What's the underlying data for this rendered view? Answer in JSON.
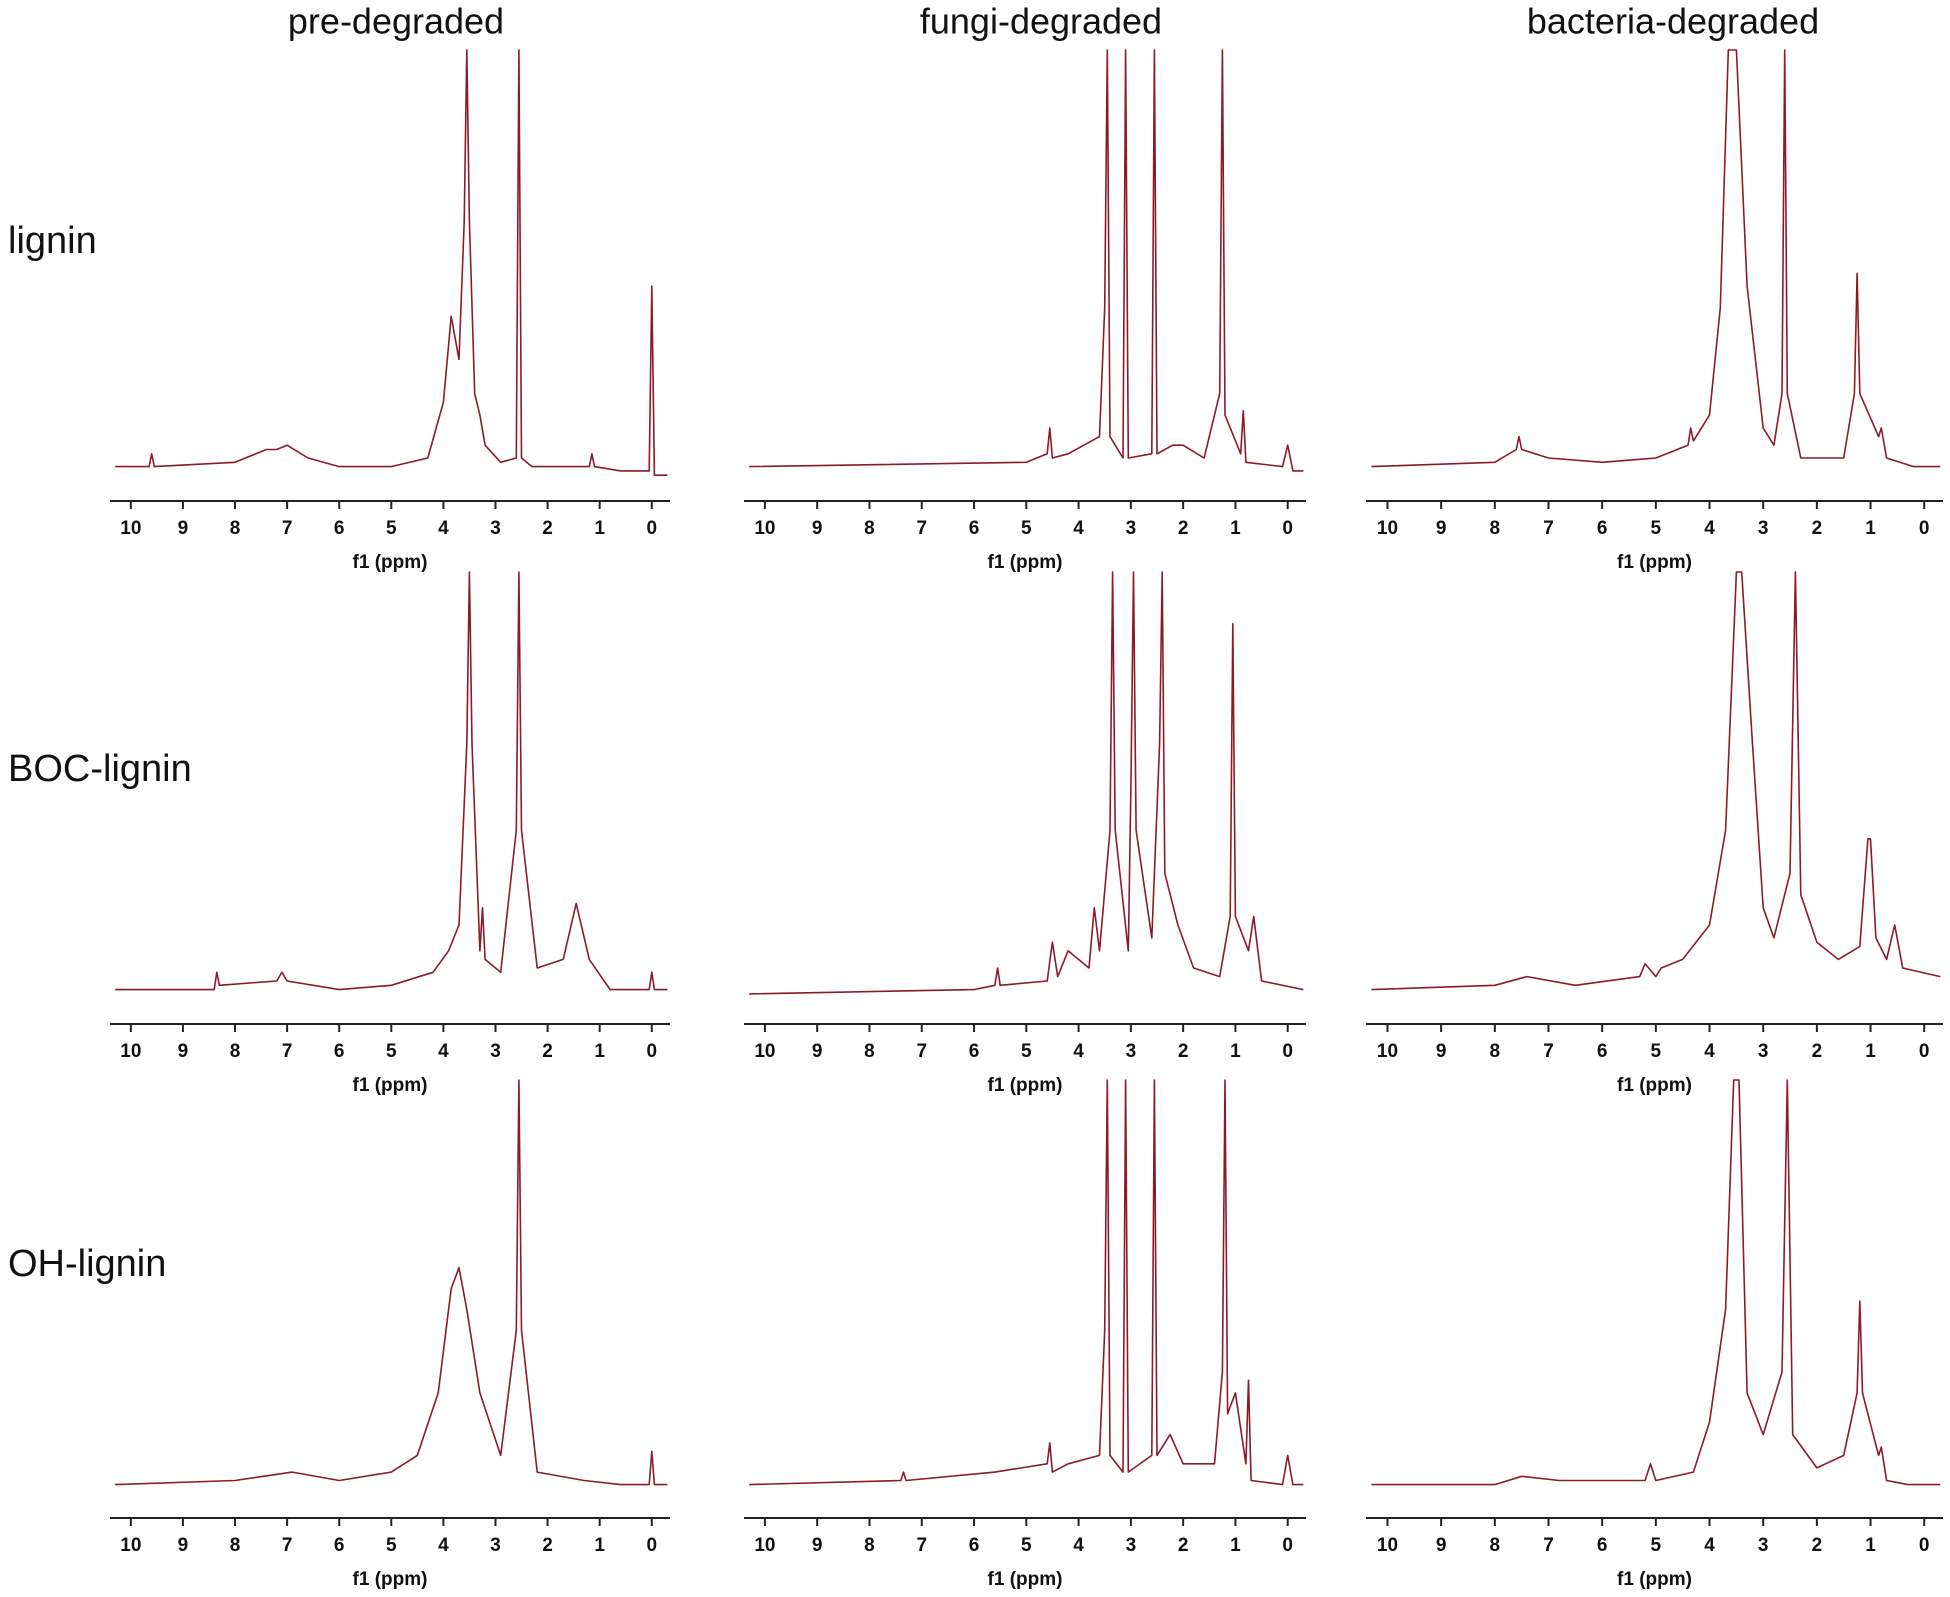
{
  "column_titles": [
    "pre-degraded",
    "fungi-degraded",
    "bacteria-degraded"
  ],
  "row_labels": [
    "lignin",
    "BOC-lignin",
    "OH-lignin"
  ],
  "chart_data": [
    {
      "type": "line",
      "xlabel": "f1 (ppm)",
      "xlim": [
        10.4,
        -0.35
      ],
      "xticks": [
        10,
        9,
        8,
        7,
        6,
        5,
        4,
        3,
        2,
        1,
        0
      ],
      "ylim": [
        -5,
        100
      ],
      "color": "#8b1a2b",
      "x": [
        10.3,
        9.65,
        9.6,
        9.55,
        8.0,
        7.4,
        7.2,
        7.0,
        6.6,
        6.0,
        5.0,
        4.3,
        4.0,
        3.85,
        3.7,
        3.6,
        3.55,
        3.5,
        3.4,
        3.3,
        3.2,
        2.9,
        2.6,
        2.55,
        2.5,
        2.3,
        1.7,
        1.2,
        1.15,
        1.1,
        0.6,
        0.05,
        0.0,
        -0.05,
        -0.3
      ],
      "values": [
        3,
        3,
        6,
        3,
        4,
        7,
        7,
        8,
        5,
        3,
        3,
        5,
        18,
        38,
        28,
        60,
        100,
        60,
        20,
        15,
        8,
        4,
        5,
        100,
        5,
        3,
        3,
        3,
        6,
        3,
        2,
        2,
        45,
        1,
        1
      ]
    },
    {
      "type": "line",
      "xlabel": "f1 (ppm)",
      "xlim": [
        10.4,
        -0.35
      ],
      "xticks": [
        10,
        9,
        8,
        7,
        6,
        5,
        4,
        3,
        2,
        1,
        0
      ],
      "ylim": [
        -5,
        100
      ],
      "color": "#8b1a2b",
      "x": [
        10.3,
        5,
        4.6,
        4.55,
        4.5,
        4.2,
        3.6,
        3.5,
        3.45,
        3.4,
        3.15,
        3.1,
        3.05,
        2.6,
        2.55,
        2.5,
        2.2,
        2.0,
        1.6,
        1.3,
        1.25,
        1.2,
        0.9,
        0.85,
        0.8,
        0.1,
        0.0,
        -0.1,
        -0.3
      ],
      "values": [
        3,
        4,
        6,
        12,
        5,
        6,
        10,
        40,
        100,
        10,
        5,
        100,
        5,
        6,
        100,
        6,
        8,
        8,
        5,
        20,
        100,
        15,
        6,
        16,
        4,
        3,
        8,
        2,
        2
      ]
    },
    {
      "type": "line",
      "xlabel": "f1 (ppm)",
      "xlim": [
        10.4,
        -0.35
      ],
      "xticks": [
        10,
        9,
        8,
        7,
        6,
        5,
        4,
        3,
        2,
        1,
        0
      ],
      "ylim": [
        -5,
        100
      ],
      "color": "#8b1a2b",
      "x": [
        10.3,
        8,
        7.6,
        7.55,
        7.5,
        7.0,
        6,
        5,
        4.4,
        4.35,
        4.3,
        4.0,
        3.8,
        3.65,
        3.5,
        3.3,
        3.0,
        2.8,
        2.65,
        2.6,
        2.55,
        2.3,
        1.5,
        1.3,
        1.25,
        1.2,
        0.85,
        0.8,
        0.7,
        0.2,
        -0.3
      ],
      "values": [
        3,
        4,
        7,
        10,
        7,
        5,
        4,
        5,
        8,
        12,
        9,
        15,
        40,
        100,
        100,
        45,
        12,
        8,
        20,
        100,
        20,
        5,
        5,
        20,
        48,
        20,
        10,
        12,
        5,
        3,
        3
      ]
    },
    {
      "type": "line",
      "xlabel": "f1 (ppm)",
      "xlim": [
        10.4,
        -0.35
      ],
      "xticks": [
        10,
        9,
        8,
        7,
        6,
        5,
        4,
        3,
        2,
        1,
        0
      ],
      "ylim": [
        -5,
        100
      ],
      "color": "#8b1a2b",
      "x": [
        10.3,
        8.4,
        8.35,
        8.3,
        7.2,
        7.1,
        7.0,
        6,
        5,
        4.2,
        3.9,
        3.7,
        3.55,
        3.5,
        3.45,
        3.3,
        3.25,
        3.2,
        2.9,
        2.6,
        2.55,
        2.5,
        2.2,
        1.7,
        1.45,
        1.2,
        0.8,
        0.05,
        0,
        -0.05,
        -0.3
      ],
      "values": [
        3,
        3,
        7,
        4,
        5,
        7,
        5,
        3,
        4,
        7,
        12,
        18,
        60,
        100,
        60,
        12,
        22,
        10,
        7,
        40,
        100,
        40,
        8,
        10,
        23,
        10,
        3,
        3,
        7,
        3,
        3
      ]
    },
    {
      "type": "line",
      "xlabel": "f1 (ppm)",
      "xlim": [
        10.4,
        -0.35
      ],
      "xticks": [
        10,
        9,
        8,
        7,
        6,
        5,
        4,
        3,
        2,
        1,
        0
      ],
      "ylim": [
        -5,
        100
      ],
      "color": "#8b1a2b",
      "x": [
        10.3,
        6,
        5.6,
        5.55,
        5.5,
        4.6,
        4.5,
        4.4,
        4.2,
        3.8,
        3.7,
        3.6,
        3.4,
        3.35,
        3.3,
        3.05,
        3.0,
        2.95,
        2.9,
        2.6,
        2.45,
        2.4,
        2.35,
        2.1,
        1.8,
        1.3,
        1.1,
        1.05,
        1.0,
        0.75,
        0.65,
        0.5,
        -0.3
      ],
      "values": [
        2,
        3,
        4,
        8,
        4,
        5,
        14,
        6,
        12,
        8,
        22,
        12,
        40,
        100,
        40,
        12,
        50,
        100,
        40,
        15,
        60,
        100,
        30,
        18,
        8,
        6,
        20,
        88,
        20,
        12,
        20,
        5,
        3
      ]
    },
    {
      "type": "line",
      "xlabel": "f1 (ppm)",
      "xlim": [
        10.4,
        -0.35
      ],
      "xticks": [
        10,
        9,
        8,
        7,
        6,
        5,
        4,
        3,
        2,
        1,
        0
      ],
      "ylim": [
        -5,
        100
      ],
      "color": "#8b1a2b",
      "x": [
        10.3,
        8,
        7.4,
        6.5,
        5.3,
        5.2,
        5.0,
        4.9,
        4.5,
        4.0,
        3.7,
        3.5,
        3.4,
        3.2,
        3.0,
        2.8,
        2.5,
        2.4,
        2.3,
        2.0,
        1.6,
        1.2,
        1.05,
        1.0,
        0.9,
        0.7,
        0.55,
        0.4,
        -0.3
      ],
      "values": [
        3,
        4,
        6,
        4,
        6,
        9,
        6,
        8,
        10,
        18,
        40,
        100,
        100,
        60,
        22,
        15,
        30,
        100,
        25,
        14,
        10,
        13,
        38,
        38,
        15,
        10,
        18,
        8,
        6
      ]
    },
    {
      "type": "line",
      "xlabel": "f1 (ppm)",
      "xlim": [
        10.4,
        -0.35
      ],
      "xticks": [
        10,
        9,
        8,
        7,
        6,
        5,
        4,
        3,
        2,
        1,
        0
      ],
      "ylim": [
        -5,
        100
      ],
      "color": "#8b1a2b",
      "x": [
        10.3,
        8,
        6.9,
        6,
        5,
        4.5,
        4.1,
        3.85,
        3.7,
        3.55,
        3.3,
        2.9,
        2.6,
        2.55,
        2.5,
        2.2,
        1.3,
        0.6,
        0.05,
        0,
        -0.05,
        -0.3
      ],
      "values": [
        3,
        4,
        6,
        4,
        6,
        10,
        25,
        50,
        55,
        45,
        25,
        10,
        40,
        100,
        40,
        6,
        4,
        3,
        3,
        11,
        3,
        3
      ]
    },
    {
      "type": "line",
      "xlabel": "f1 (ppm)",
      "xlim": [
        10.4,
        -0.35
      ],
      "xticks": [
        10,
        9,
        8,
        7,
        6,
        5,
        4,
        3,
        2,
        1,
        0
      ],
      "ylim": [
        -5,
        100
      ],
      "color": "#8b1a2b",
      "x": [
        10.3,
        7.4,
        7.35,
        7.3,
        5.6,
        4.6,
        4.55,
        4.5,
        4.2,
        3.6,
        3.5,
        3.45,
        3.4,
        3.15,
        3.1,
        3.05,
        2.6,
        2.55,
        2.5,
        2.25,
        2.0,
        1.4,
        1.25,
        1.2,
        1.15,
        1.0,
        0.8,
        0.75,
        0.7,
        0.1,
        0.0,
        -0.1,
        -0.3
      ],
      "values": [
        3,
        4,
        6,
        4,
        6,
        8,
        13,
        6,
        8,
        10,
        40,
        100,
        10,
        6,
        100,
        6,
        10,
        100,
        10,
        15,
        8,
        8,
        30,
        100,
        20,
        25,
        8,
        28,
        4,
        3,
        10,
        3,
        3
      ]
    },
    {
      "type": "line",
      "xlabel": "f1 (ppm)",
      "xlim": [
        10.4,
        -0.35
      ],
      "xticks": [
        10,
        9,
        8,
        7,
        6,
        5,
        4,
        3,
        2,
        1,
        0
      ],
      "ylim": [
        -5,
        100
      ],
      "color": "#8b1a2b",
      "x": [
        10.3,
        8,
        7.5,
        6.8,
        5.2,
        5.1,
        5.0,
        4.3,
        4.0,
        3.7,
        3.55,
        3.45,
        3.3,
        3.0,
        2.65,
        2.55,
        2.45,
        2.0,
        1.5,
        1.25,
        1.2,
        1.15,
        0.85,
        0.8,
        0.7,
        0.3,
        -0.3
      ],
      "values": [
        3,
        3,
        5,
        4,
        4,
        8,
        4,
        6,
        18,
        45,
        100,
        100,
        25,
        15,
        30,
        100,
        15,
        7,
        10,
        25,
        47,
        25,
        10,
        12,
        4,
        3,
        3
      ]
    }
  ]
}
